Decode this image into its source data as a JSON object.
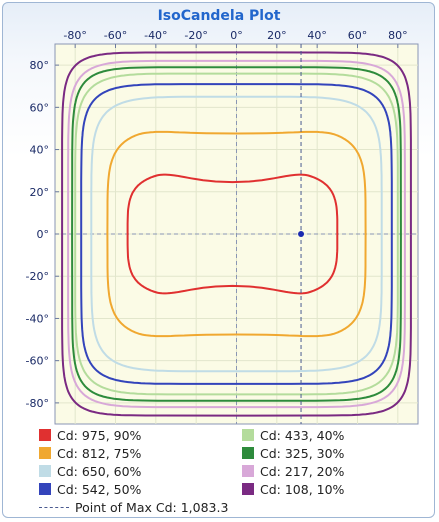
{
  "chart_data": {
    "type": "line",
    "title": "IsoCandela Plot",
    "x_ticks": [
      "-80°",
      "-60°",
      "-40°",
      "-20°",
      "0°",
      "20°",
      "40°",
      "60°",
      "80°"
    ],
    "y_ticks": [
      "80°",
      "60°",
      "40°",
      "20°",
      "0°",
      "-20°",
      "-40°",
      "-60°",
      "-80°"
    ],
    "xlim": [
      -90,
      90
    ],
    "ylim": [
      -90,
      90
    ],
    "grid": true,
    "max_point": {
      "x": 32,
      "y": 0
    },
    "series": [
      {
        "name": "Cd: 975, 90%",
        "color": "#e03030",
        "half_width_x": 52,
        "half_height_y": 30,
        "x_offset": -2,
        "squareness": 4,
        "waist": 0.3
      },
      {
        "name": "Cd: 812, 75%",
        "color": "#f0a830",
        "half_width_x": 64,
        "half_height_y": 50,
        "x_offset": 0,
        "squareness": 5,
        "waist": 0.08
      },
      {
        "name": "Cd: 650, 60%",
        "color": "#c0dce6",
        "half_width_x": 72,
        "half_height_y": 65,
        "x_offset": 0,
        "squareness": 6,
        "waist": 0
      },
      {
        "name": "Cd: 542, 50%",
        "color": "#3344bb",
        "half_width_x": 77,
        "half_height_y": 71,
        "x_offset": 0,
        "squareness": 7,
        "waist": 0
      },
      {
        "name": "Cd: 433, 40%",
        "color": "#b4dc9c",
        "half_width_x": 80,
        "half_height_y": 76,
        "x_offset": 0,
        "squareness": 7,
        "waist": 0
      },
      {
        "name": "Cd: 325, 30%",
        "color": "#2e8b3c",
        "half_width_x": 81.5,
        "half_height_y": 79,
        "x_offset": 0,
        "squareness": 8,
        "waist": 0
      },
      {
        "name": "Cd: 217, 20%",
        "color": "#d8a8d8",
        "half_width_x": 83.5,
        "half_height_y": 82,
        "x_offset": 0,
        "squareness": 8,
        "waist": 0
      },
      {
        "name": "Cd: 108, 10%",
        "color": "#7a2a82",
        "half_width_x": 86.5,
        "half_height_y": 86,
        "x_offset": 0,
        "squareness": 9,
        "waist": 0
      }
    ],
    "max_label": "Point of Max Cd: 1,083.3"
  }
}
